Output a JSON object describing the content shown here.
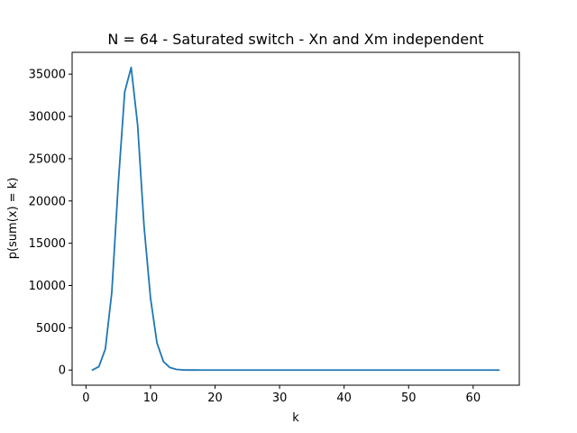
{
  "chart_data": {
    "type": "line",
    "title": "N = 64 - Saturated switch - Xn and Xm independent",
    "xlabel": "k",
    "ylabel": "p(sum(x) = k)",
    "xlim": [
      -2.15,
      67.15
    ],
    "ylim": [
      -1790,
      37580
    ],
    "xticks": [
      0,
      10,
      20,
      30,
      40,
      50,
      60
    ],
    "yticks": [
      0,
      5000,
      10000,
      15000,
      20000,
      25000,
      30000,
      35000
    ],
    "grid": false,
    "color": "#1f77b4",
    "series": [
      {
        "x": [
          1,
          2,
          3,
          4,
          5,
          6,
          7,
          8,
          9,
          10,
          11,
          12,
          13,
          14,
          15,
          16,
          17,
          18,
          19,
          20,
          21,
          22,
          23,
          24,
          25,
          26,
          27,
          28,
          29,
          30,
          31,
          32,
          33,
          34,
          35,
          36,
          37,
          38,
          39,
          40,
          41,
          42,
          43,
          44,
          45,
          46,
          47,
          48,
          49,
          50,
          51,
          52,
          53,
          54,
          55,
          56,
          57,
          58,
          59,
          60,
          61,
          62,
          63,
          64
        ],
        "values": [
          0,
          400,
          2500,
          9200,
          22000,
          32900,
          35800,
          29000,
          17000,
          8500,
          3200,
          1000,
          300,
          80,
          20,
          5,
          1,
          0,
          0,
          0,
          0,
          0,
          0,
          0,
          0,
          0,
          0,
          0,
          0,
          0,
          0,
          0,
          0,
          0,
          0,
          0,
          0,
          0,
          0,
          0,
          0,
          0,
          0,
          0,
          0,
          0,
          0,
          0,
          0,
          0,
          0,
          0,
          0,
          0,
          0,
          0,
          0,
          0,
          0,
          0,
          0,
          0,
          0,
          0
        ]
      }
    ]
  }
}
